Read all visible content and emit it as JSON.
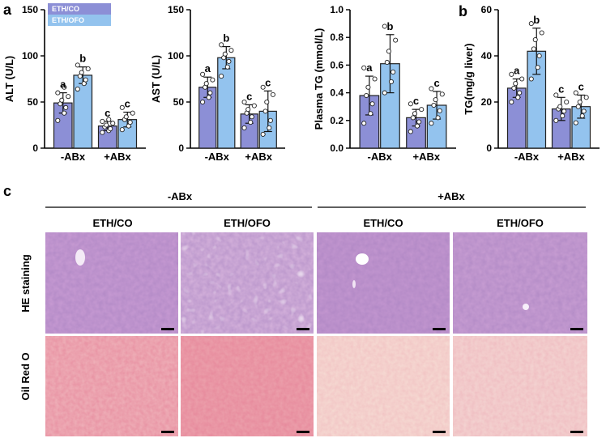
{
  "colors": {
    "co": "#8c8fd6",
    "ofo": "#93c3ee",
    "he": "#c79ad1",
    "oil_a": "#f2b6b8",
    "oil_b": "#f7dcd6"
  },
  "legend": {
    "co": "ETH/CO",
    "ofo": "ETH/OFO"
  },
  "panels": {
    "a": "a",
    "b": "b",
    "c": "c"
  },
  "chart_data": [
    {
      "type": "bar",
      "ylabel": "ALT (U/L)",
      "ylim": [
        0,
        150
      ],
      "yticks": [
        "0",
        "50",
        "100",
        "150"
      ],
      "categories": [
        "-ABx",
        "+ABx"
      ],
      "series": [
        {
          "name": "ETH/CO",
          "values": [
            49,
            24
          ],
          "err": [
            11,
            5
          ],
          "letters": [
            "a",
            "c"
          ],
          "points": [
            [
              30,
              38,
              44,
              48,
              52,
              56,
              60,
              66
            ],
            [
              17,
              19,
              21,
              23,
              25,
              27,
              29,
              31
            ]
          ]
        },
        {
          "name": "ETH/OFO",
          "values": [
            79,
            31
          ],
          "err": [
            9,
            8
          ],
          "letters": [
            "b",
            "c"
          ],
          "points": [
            [
              64,
              70,
              74,
              78,
              82,
              86,
              90
            ],
            [
              20,
              24,
              28,
              31,
              34,
              38,
              44
            ]
          ]
        }
      ]
    },
    {
      "type": "bar",
      "ylabel": "AST (U/L)",
      "ylim": [
        0,
        150
      ],
      "yticks": [
        "0",
        "50",
        "100",
        "150"
      ],
      "categories": [
        "-ABx",
        "+ABx"
      ],
      "series": [
        {
          "name": "ETH/CO",
          "values": [
            66,
            37
          ],
          "err": [
            11,
            10
          ],
          "letters": [
            "a",
            "c"
          ],
          "points": [
            [
              50,
              55,
              60,
              66,
              70,
              74,
              80
            ],
            [
              22,
              28,
              34,
              38,
              42,
              46,
              50
            ]
          ]
        },
        {
          "name": "ETH/OFO",
          "values": [
            98,
            40
          ],
          "err": [
            12,
            22
          ],
          "letters": [
            "b",
            "c"
          ],
          "points": [
            [
              78,
              88,
              94,
              98,
              102,
              106,
              112
            ],
            [
              15,
              22,
              30,
              40,
              50,
              58,
              66
            ]
          ]
        }
      ]
    },
    {
      "type": "bar",
      "ylabel": "Plasma TG (mmol/L)",
      "ylim": [
        0,
        1.0
      ],
      "yticks": [
        "0.0",
        "0.2",
        "0.4",
        "0.6",
        "0.8",
        "1.0"
      ],
      "categories": [
        "-ABx",
        "+ABx"
      ],
      "series": [
        {
          "name": "ETH/CO",
          "values": [
            0.38,
            0.22
          ],
          "err": [
            0.14,
            0.06
          ],
          "letters": [
            "a",
            "c"
          ],
          "points": [
            [
              0.18,
              0.25,
              0.32,
              0.38,
              0.44,
              0.5,
              0.58
            ],
            [
              0.12,
              0.16,
              0.19,
              0.22,
              0.25,
              0.28,
              0.32
            ]
          ]
        },
        {
          "name": "ETH/OFO",
          "values": [
            0.61,
            0.31
          ],
          "err": [
            0.21,
            0.1
          ],
          "letters": [
            "b",
            "c"
          ],
          "points": [
            [
              0.4,
              0.48,
              0.55,
              0.62,
              0.7,
              0.78,
              0.88
            ],
            [
              0.18,
              0.22,
              0.27,
              0.31,
              0.35,
              0.39,
              0.43
            ]
          ]
        }
      ]
    },
    {
      "type": "bar",
      "ylabel": "TG(mg/g liver)",
      "ylim": [
        0,
        60
      ],
      "yticks": [
        "0",
        "20",
        "40",
        "60"
      ],
      "categories": [
        "-ABx",
        "+ABx"
      ],
      "series": [
        {
          "name": "ETH/CO",
          "values": [
            26,
            17
          ],
          "err": [
            4,
            5
          ],
          "letters": [
            "a",
            "c"
          ],
          "points": [
            [
              20,
              22,
              24,
              26,
              28,
              30,
              32
            ],
            [
              12,
              14,
              16,
              17,
              18,
              20,
              23
            ]
          ]
        },
        {
          "name": "ETH/OFO",
          "values": [
            42,
            18
          ],
          "err": [
            10,
            5
          ],
          "letters": [
            "b",
            "c"
          ],
          "points": [
            [
              30,
              35,
              40,
              43,
              47,
              50,
              54
            ],
            [
              11,
              14,
              16,
              18,
              20,
              22,
              24
            ]
          ]
        }
      ]
    }
  ],
  "histology": {
    "groups": [
      "-ABx",
      "+ABx"
    ],
    "columns": [
      "ETH/CO",
      "ETH/OFO",
      "ETH/CO",
      "ETH/OFO"
    ],
    "rows": [
      "HE staining",
      "Oil Red O"
    ]
  }
}
